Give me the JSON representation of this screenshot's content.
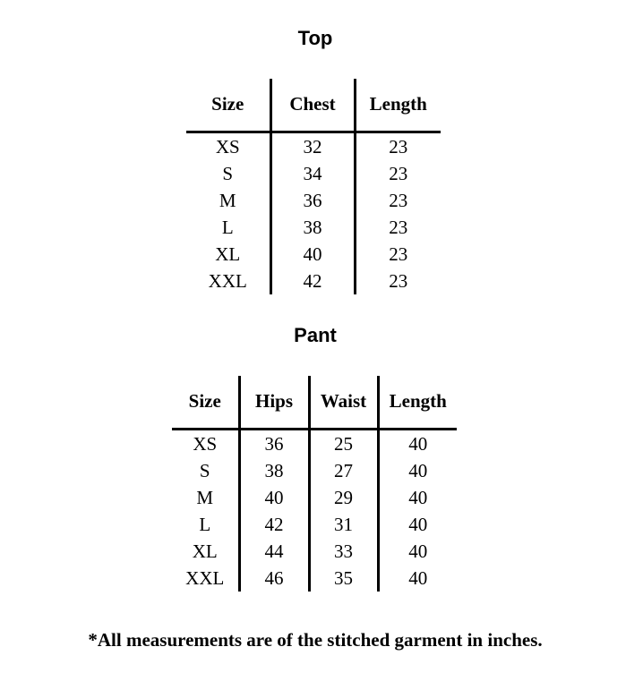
{
  "top": {
    "title": "Top",
    "headers": [
      "Size",
      "Chest",
      "Length"
    ],
    "rows": [
      [
        "XS",
        "32",
        "23"
      ],
      [
        "S",
        "34",
        "23"
      ],
      [
        "M",
        "36",
        "23"
      ],
      [
        "L",
        "38",
        "23"
      ],
      [
        "XL",
        "40",
        "23"
      ],
      [
        "XXL",
        "42",
        "23"
      ]
    ]
  },
  "pant": {
    "title": "Pant",
    "headers": [
      "Size",
      "Hips",
      "Waist",
      "Length"
    ],
    "rows": [
      [
        "XS",
        "36",
        "25",
        "40"
      ],
      [
        "S",
        "38",
        "27",
        "40"
      ],
      [
        "M",
        "40",
        "29",
        "40"
      ],
      [
        "L",
        "42",
        "31",
        "40"
      ],
      [
        "XL",
        "44",
        "33",
        "40"
      ],
      [
        "XXL",
        "46",
        "35",
        "40"
      ]
    ]
  },
  "footnote": "*All measurements are of the stitched garment in inches."
}
